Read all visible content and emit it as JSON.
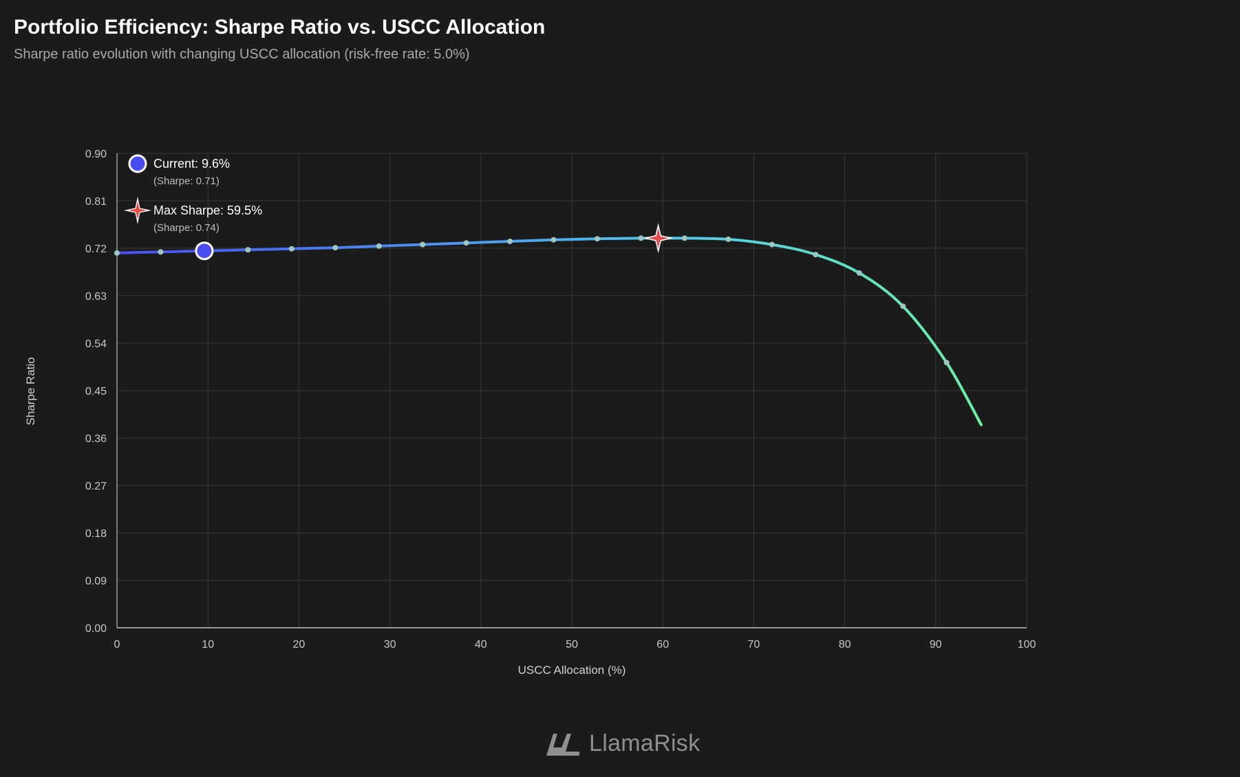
{
  "header": {
    "title": "Portfolio Efficiency: Sharpe Ratio vs. USCC Allocation",
    "subtitle": "Sharpe ratio evolution with changing USCC allocation (risk-free rate: 5.0%)"
  },
  "brand": {
    "name": "LlamaRisk"
  },
  "chart_data": {
    "type": "line",
    "title": "Portfolio Efficiency: Sharpe Ratio vs. USCC Allocation",
    "subtitle": "Sharpe ratio evolution with changing USCC allocation (risk-free rate: 5.0%)",
    "xlabel": "USCC Allocation (%)",
    "ylabel": "Sharpe Ratio",
    "xlim": [
      0,
      100
    ],
    "ylim": [
      0,
      0.9
    ],
    "x_ticks": [
      "0",
      "10",
      "20",
      "30",
      "40",
      "50",
      "60",
      "70",
      "80",
      "90",
      "100"
    ],
    "y_ticks": [
      "0.00",
      "0.09",
      "0.18",
      "0.27",
      "0.36",
      "0.45",
      "0.54",
      "0.63",
      "0.72",
      "0.81",
      "0.90"
    ],
    "grid": true,
    "series": [
      {
        "x": [
          0,
          4.8,
          9.6,
          14.4,
          19.2,
          24.0,
          28.8,
          33.6,
          38.4,
          43.2,
          48.0,
          52.8,
          57.6,
          62.4,
          67.2,
          72.0,
          76.8,
          81.6,
          86.4,
          91.2,
          95.0
        ],
        "values": [
          0.711,
          0.713,
          0.715,
          0.717,
          0.719,
          0.721,
          0.724,
          0.727,
          0.73,
          0.733,
          0.736,
          0.738,
          0.739,
          0.739,
          0.737,
          0.727,
          0.708,
          0.673,
          0.61,
          0.503,
          0.385
        ],
        "gradient": [
          "#4b4df2",
          "#4a8cf0",
          "#52cbe6",
          "#6ef0a4"
        ]
      }
    ],
    "annotations": [
      {
        "kind": "current",
        "x": 9.6,
        "y": 0.715,
        "label": "Current: 9.6%",
        "sub": "(Sharpe: 0.71)",
        "color": "#4b4df2"
      },
      {
        "kind": "max",
        "x": 59.5,
        "y": 0.739,
        "label": "Max Sharpe: 59.5%",
        "sub": "(Sharpe: 0.74)",
        "color": "#e84a4a"
      }
    ],
    "legend_position": "top-left"
  },
  "colors": {
    "background": "#1b1b1b",
    "grid": "#3a3a3a",
    "axis": "#9a9a9a",
    "tick_text": "#c8c8c8",
    "marker_dot": "#9ec7c4"
  }
}
